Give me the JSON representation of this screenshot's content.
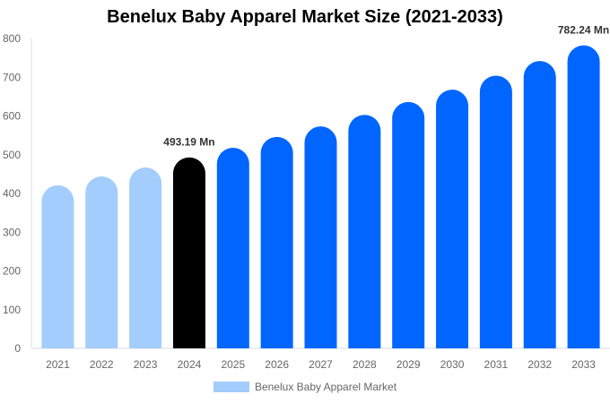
{
  "chart_data": {
    "type": "bar",
    "title": "Benelux Baby Apparel Market Size (2021-2033)",
    "xlabel": "",
    "ylabel": "",
    "ylim": [
      0,
      800
    ],
    "yticks": [
      0,
      100,
      200,
      300,
      400,
      500,
      600,
      700,
      800
    ],
    "grid": false,
    "legend_placement": "bottom",
    "categories": [
      "2021",
      "2022",
      "2023",
      "2024",
      "2025",
      "2026",
      "2027",
      "2028",
      "2029",
      "2030",
      "2031",
      "2032",
      "2033"
    ],
    "series": [
      {
        "name": "Benelux Baby Apparel Market",
        "values": [
          421,
          444,
          467,
          493.19,
          518,
          546,
          573,
          603,
          636,
          668,
          704,
          742,
          782.24
        ]
      }
    ],
    "bar_colors": [
      "#a3cdfc",
      "#a3cdfc",
      "#a3cdfc",
      "#000000",
      "#0066ff",
      "#0066ff",
      "#0066ff",
      "#0066ff",
      "#0066ff",
      "#0066ff",
      "#0066ff",
      "#0066ff",
      "#0066ff"
    ],
    "legend_color": "#a3cdfc",
    "data_labels": [
      {
        "category": "2024",
        "text": "493.19 Mn"
      },
      {
        "category": "2033",
        "text": "782.24 Mn"
      }
    ]
  }
}
